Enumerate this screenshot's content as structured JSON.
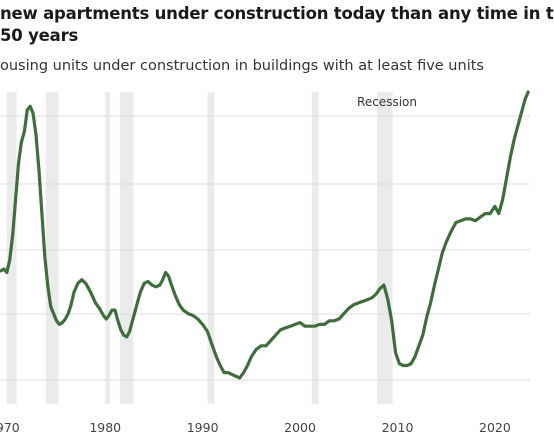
{
  "chart_data": {
    "type": "line",
    "title_line1": "new apartments under construction today than any time in t",
    "title_line2": "50 years",
    "subtitle": "ousing units under construction in buildings with at least five units",
    "annotation": "Recession",
    "x_ticks": [
      "970",
      "1980",
      "1990",
      "2000",
      "2010",
      "2020"
    ],
    "x_tick_values": [
      1970,
      1980,
      1990,
      2000,
      2010,
      2020
    ],
    "xlim": [
      1969.2,
      2023.6
    ],
    "grid": true,
    "colors": {
      "line": "#3f6e3d",
      "recession": "#ebebeb",
      "grid": "#dddddd"
    },
    "recessions": [
      [
        1969.9,
        1970.9
      ],
      [
        1973.9,
        1975.2
      ],
      [
        1980.0,
        1980.5
      ],
      [
        1981.5,
        1982.9
      ],
      [
        1990.5,
        1991.2
      ],
      [
        2001.2,
        2001.9
      ],
      [
        2007.9,
        2009.5
      ]
    ],
    "series": [
      {
        "x": [
          1969.3,
          1969.6,
          1969.9,
          1970.2,
          1970.5,
          1970.8,
          1971.1,
          1971.4,
          1971.7,
          1972.0,
          1972.3,
          1972.6,
          1972.9,
          1973.2,
          1973.5,
          1973.8,
          1974.1,
          1974.4,
          1974.7,
          1975.0,
          1975.3,
          1975.6,
          1975.9,
          1976.2,
          1976.5,
          1976.8,
          1977.2,
          1977.6,
          1978.0,
          1978.5,
          1979.0,
          1979.4,
          1979.8,
          1980.1,
          1980.4,
          1980.7,
          1981.0,
          1981.3,
          1981.6,
          1981.9,
          1982.2,
          1982.5,
          1982.8,
          1983.2,
          1983.6,
          1984.0,
          1984.4,
          1984.8,
          1985.2,
          1985.6,
          1985.9,
          1986.2,
          1986.5,
          1986.8,
          1987.2,
          1987.6,
          1988.0,
          1988.5,
          1989.0,
          1989.5,
          1990.0,
          1990.5,
          1991.0,
          1991.4,
          1991.8,
          1992.2,
          1992.6,
          1993.0,
          1993.4,
          1993.8,
          1994.2,
          1994.6,
          1995.0,
          1995.5,
          1996.0,
          1996.5,
          1997.0,
          1997.5,
          1998.0,
          1998.5,
          1999.0,
          1999.5,
          2000.0,
          2000.5,
          2001.0,
          2001.5,
          2002.0,
          2002.5,
          2003.0,
          2003.5,
          2004.0,
          2004.5,
          2005.0,
          2005.5,
          2006.0,
          2006.5,
          2007.0,
          2007.4,
          2007.8,
          2008.2,
          2008.6,
          2009.0,
          2009.4,
          2009.8,
          2010.2,
          2010.6,
          2011.0,
          2011.4,
          2011.8,
          2012.2,
          2012.6,
          2013.0,
          2013.4,
          2013.8,
          2014.2,
          2014.6,
          2015.0,
          2015.5,
          2016.0,
          2016.5,
          2017.0,
          2017.5,
          2018.0,
          2018.5,
          2019.0,
          2019.5,
          2020.0,
          2020.4,
          2020.8,
          2021.2,
          2021.6,
          2022.0,
          2022.4,
          2022.8,
          2023.1,
          2023.4
        ],
        "y": [
          0.54,
          0.545,
          0.535,
          0.57,
          0.64,
          0.74,
          0.84,
          0.9,
          0.93,
          0.99,
          1.0,
          0.98,
          0.92,
          0.82,
          0.7,
          0.58,
          0.5,
          0.44,
          0.42,
          0.4,
          0.39,
          0.395,
          0.405,
          0.42,
          0.445,
          0.48,
          0.505,
          0.515,
          0.505,
          0.48,
          0.45,
          0.435,
          0.415,
          0.405,
          0.415,
          0.43,
          0.43,
          0.4,
          0.375,
          0.36,
          0.355,
          0.37,
          0.4,
          0.44,
          0.48,
          0.505,
          0.51,
          0.5,
          0.495,
          0.5,
          0.515,
          0.535,
          0.525,
          0.5,
          0.47,
          0.445,
          0.43,
          0.42,
          0.415,
          0.405,
          0.39,
          0.37,
          0.33,
          0.3,
          0.275,
          0.255,
          0.255,
          0.25,
          0.245,
          0.24,
          0.255,
          0.275,
          0.3,
          0.32,
          0.33,
          0.33,
          0.345,
          0.36,
          0.375,
          0.38,
          0.385,
          0.39,
          0.395,
          0.385,
          0.385,
          0.385,
          0.39,
          0.39,
          0.4,
          0.4,
          0.405,
          0.42,
          0.435,
          0.445,
          0.45,
          0.455,
          0.46,
          0.465,
          0.475,
          0.49,
          0.5,
          0.46,
          0.4,
          0.31,
          0.28,
          0.275,
          0.275,
          0.28,
          0.3,
          0.33,
          0.36,
          0.41,
          0.45,
          0.5,
          0.545,
          0.59,
          0.62,
          0.65,
          0.675,
          0.68,
          0.685,
          0.685,
          0.68,
          0.69,
          0.7,
          0.7,
          0.72,
          0.7,
          0.74,
          0.8,
          0.86,
          0.91,
          0.95,
          0.99,
          1.02,
          1.04
        ]
      }
    ]
  }
}
